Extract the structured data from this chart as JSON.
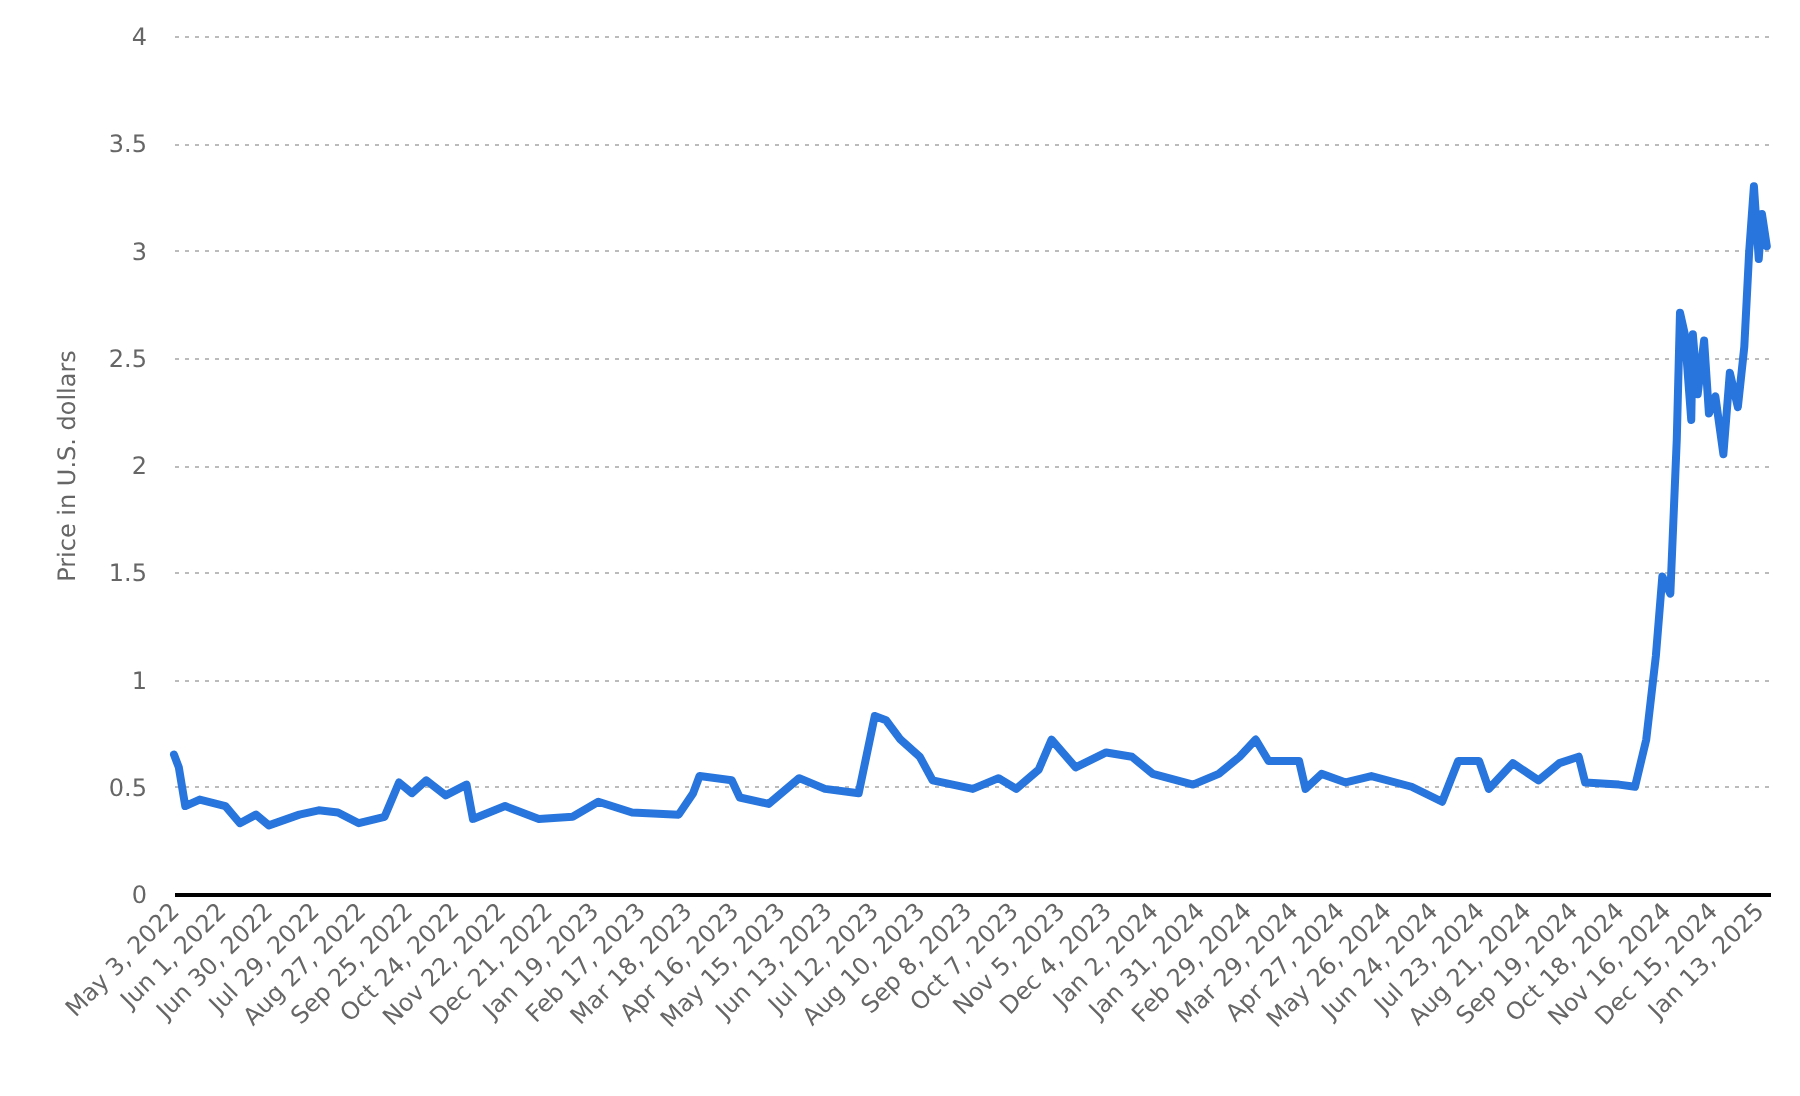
{
  "chart_data": {
    "type": "line",
    "ylabel": "Price in U.S. dollars",
    "grid": "y",
    "line_style": "solid",
    "marker": "none",
    "xlim": [
      "2022-05-03",
      "2025-01-20"
    ],
    "xticks": [
      {
        "value": "2022-05-03",
        "label": "May 3, 2022"
      },
      {
        "value": "2022-06-01",
        "label": "Jun 1, 2022"
      },
      {
        "value": "2022-06-30",
        "label": "Jun 30, 2022"
      },
      {
        "value": "2022-07-29",
        "label": "Jul 29, 2022"
      },
      {
        "value": "2022-08-27",
        "label": "Aug 27, 2022"
      },
      {
        "value": "2022-09-25",
        "label": "Sep 25, 2022"
      },
      {
        "value": "2022-10-24",
        "label": "Oct 24, 2022"
      },
      {
        "value": "2022-11-22",
        "label": "Nov 22, 2022"
      },
      {
        "value": "2022-12-21",
        "label": "Dec 21, 2022"
      },
      {
        "value": "2023-01-19",
        "label": "Jan 19, 2023"
      },
      {
        "value": "2023-02-17",
        "label": "Feb 17, 2023"
      },
      {
        "value": "2023-03-18",
        "label": "Mar 18, 2023"
      },
      {
        "value": "2023-04-16",
        "label": "Apr 16, 2023"
      },
      {
        "value": "2023-05-15",
        "label": "May 15, 2023"
      },
      {
        "value": "2023-06-13",
        "label": "Jun 13, 2023"
      },
      {
        "value": "2023-07-12",
        "label": "Jul 12, 2023"
      },
      {
        "value": "2023-08-10",
        "label": "Aug 10, 2023"
      },
      {
        "value": "2023-09-08",
        "label": "Sep 8, 2023"
      },
      {
        "value": "2023-10-07",
        "label": "Oct 7, 2023"
      },
      {
        "value": "2023-11-05",
        "label": "Nov 5, 2023"
      },
      {
        "value": "2023-12-04",
        "label": "Dec 4, 2023"
      },
      {
        "value": "2024-01-02",
        "label": "Jan 2, 2024"
      },
      {
        "value": "2024-01-31",
        "label": "Jan 31, 2024"
      },
      {
        "value": "2024-02-29",
        "label": "Feb 29, 2024"
      },
      {
        "value": "2024-03-29",
        "label": "Mar 29, 2024"
      },
      {
        "value": "2024-04-27",
        "label": "Apr 27, 2024"
      },
      {
        "value": "2024-05-26",
        "label": "May 26, 2024"
      },
      {
        "value": "2024-06-24",
        "label": "Jun 24, 2024"
      },
      {
        "value": "2024-07-23",
        "label": "Jul 23, 2024"
      },
      {
        "value": "2024-08-21",
        "label": "Aug 21, 2024"
      },
      {
        "value": "2024-09-19",
        "label": "Sep 19, 2024"
      },
      {
        "value": "2024-10-18",
        "label": "Oct 18, 2024"
      },
      {
        "value": "2024-11-16",
        "label": "Nov 16, 2024"
      },
      {
        "value": "2024-12-15",
        "label": "Dec 15, 2024"
      },
      {
        "value": "2025-01-13",
        "label": "Jan 13, 2025"
      }
    ],
    "ylim": [
      0,
      4
    ],
    "yticks": [
      0,
      0.5,
      1,
      1.5,
      2,
      2.5,
      3,
      3.5,
      4
    ],
    "x": [
      "2022-05-03",
      "2022-05-06",
      "2022-05-10",
      "2022-05-19",
      "2022-06-04",
      "2022-06-13",
      "2022-06-23",
      "2022-07-01",
      "2022-07-20",
      "2022-08-01",
      "2022-08-13",
      "2022-08-26",
      "2022-09-11",
      "2022-09-20",
      "2022-09-28",
      "2022-10-07",
      "2022-10-19",
      "2022-11-01",
      "2022-11-05",
      "2022-11-25",
      "2022-12-16",
      "2023-01-06",
      "2023-01-22",
      "2023-02-12",
      "2023-03-13",
      "2023-03-22",
      "2023-03-26",
      "2023-04-15",
      "2023-04-20",
      "2023-05-08",
      "2023-05-27",
      "2023-06-12",
      "2023-07-03",
      "2023-07-13",
      "2023-07-20",
      "2023-07-29",
      "2023-08-10",
      "2023-08-18",
      "2023-09-12",
      "2023-09-28",
      "2023-10-09",
      "2023-10-23",
      "2023-10-31",
      "2023-11-15",
      "2023-12-04",
      "2023-12-20",
      "2024-01-02",
      "2024-01-27",
      "2024-02-12",
      "2024-02-25",
      "2024-03-06",
      "2024-03-14",
      "2024-04-02",
      "2024-04-06",
      "2024-04-16",
      "2024-05-01",
      "2024-05-17",
      "2024-06-11",
      "2024-06-30",
      "2024-07-10",
      "2024-07-23",
      "2024-07-29",
      "2024-08-13",
      "2024-08-29",
      "2024-09-11",
      "2024-09-23",
      "2024-09-27",
      "2024-10-18",
      "2024-10-28",
      "2024-11-04",
      "2024-11-10",
      "2024-11-14",
      "2024-11-19",
      "2024-11-23",
      "2024-11-25",
      "2024-11-28",
      "2024-12-02",
      "2024-12-03",
      "2024-12-06",
      "2024-12-10",
      "2024-12-13",
      "2024-12-17",
      "2024-12-22",
      "2024-12-26",
      "2024-12-31",
      "2025-01-04",
      "2025-01-07",
      "2025-01-10",
      "2025-01-13",
      "2025-01-15",
      "2025-01-18"
    ],
    "series": [
      {
        "color": "#2876dd",
        "values": [
          0.65,
          0.59,
          0.41,
          0.44,
          0.41,
          0.33,
          0.37,
          0.32,
          0.37,
          0.39,
          0.38,
          0.33,
          0.36,
          0.52,
          0.47,
          0.53,
          0.46,
          0.51,
          0.35,
          0.41,
          0.35,
          0.36,
          0.43,
          0.38,
          0.37,
          0.47,
          0.55,
          0.53,
          0.45,
          0.42,
          0.54,
          0.49,
          0.47,
          0.83,
          0.81,
          0.72,
          0.64,
          0.53,
          0.49,
          0.54,
          0.49,
          0.58,
          0.72,
          0.59,
          0.66,
          0.64,
          0.56,
          0.51,
          0.56,
          0.64,
          0.72,
          0.62,
          0.62,
          0.49,
          0.56,
          0.52,
          0.55,
          0.5,
          0.43,
          0.62,
          0.62,
          0.49,
          0.61,
          0.53,
          0.61,
          0.64,
          0.52,
          0.51,
          0.5,
          0.72,
          1.11,
          1.48,
          1.4,
          2.12,
          2.71,
          2.61,
          2.21,
          2.61,
          2.33,
          2.58,
          2.24,
          2.32,
          2.05,
          2.43,
          2.27,
          2.55,
          2.99,
          3.3,
          2.96,
          3.17,
          3.02
        ]
      }
    ]
  }
}
